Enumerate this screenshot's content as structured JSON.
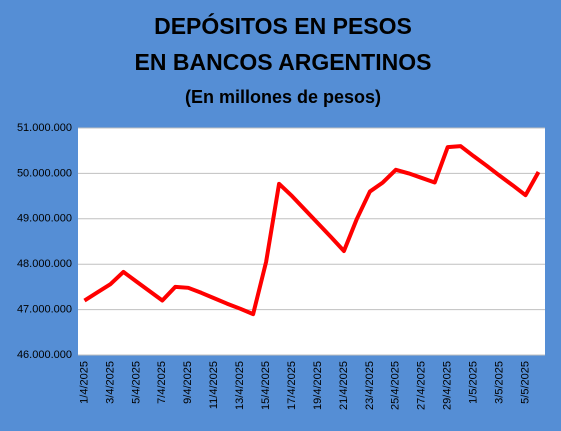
{
  "chart_data": {
    "type": "line",
    "title": "DEPÓSITOS EN PESOS",
    "subtitle": "EN BANCOS ARGENTINOS",
    "note": "(En millones de pesos)",
    "categories": [
      "1/4/2025",
      null,
      "3/4/2025",
      null,
      "5/4/2025",
      null,
      "7/4/2025",
      null,
      "9/4/2025",
      null,
      "11/4/2025",
      null,
      "13/4/2025",
      null,
      "15/4/2025",
      null,
      "17/4/2025",
      null,
      "19/4/2025",
      null,
      "21/4/2025",
      null,
      "23/4/2025",
      null,
      "25/4/2025",
      null,
      "27/4/2025",
      null,
      "29/4/2025",
      null,
      "1/5/2025",
      null,
      "3/5/2025",
      null,
      "5/5/2025",
      null
    ],
    "series": [
      {
        "color": "#ff0000",
        "values": [
          47200000,
          47380000,
          47560000,
          47830000,
          47620000,
          47410000,
          47200000,
          47500000,
          47480000,
          47370000,
          47250000,
          47130000,
          47020000,
          46900000,
          48050000,
          49770000,
          49500000,
          49200000,
          48900000,
          48600000,
          48290000,
          49000000,
          49600000,
          49800000,
          50080000,
          50000000,
          49900000,
          49800000,
          50580000,
          50600000,
          50380000,
          50170000,
          49950000,
          49740000,
          49520000,
          50030000
        ]
      }
    ],
    "ylim": [
      46000000,
      51000000
    ],
    "yticks": [
      {
        "value": 46000000,
        "label": "46.000.000"
      },
      {
        "value": 47000000,
        "label": "47.000.000"
      },
      {
        "value": 48000000,
        "label": "48.000.000"
      },
      {
        "value": 49000000,
        "label": "49.000.000"
      },
      {
        "value": 50000000,
        "label": "50.000.000"
      },
      {
        "value": 51000000,
        "label": "51.000.000"
      }
    ],
    "grid": true
  }
}
